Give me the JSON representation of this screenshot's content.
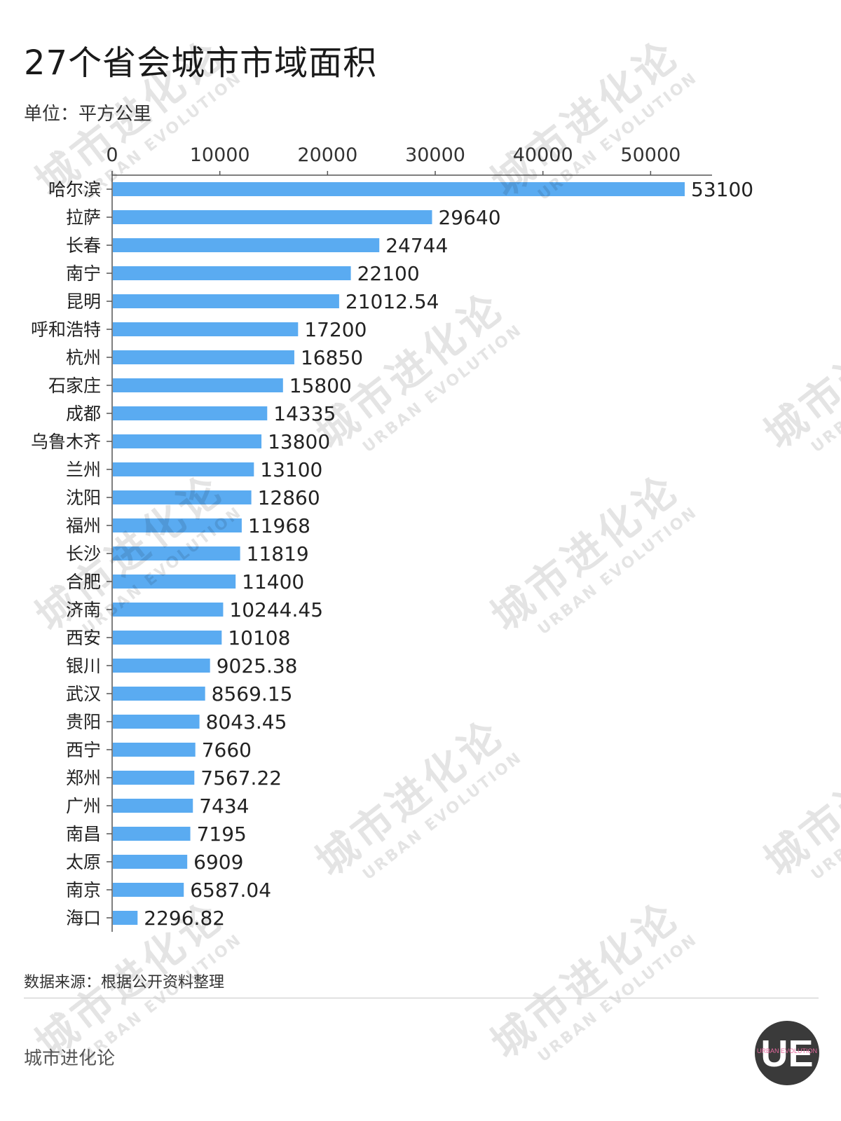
{
  "header": {
    "title": "27个省会城市市域面积",
    "unit": "单位：平方公里"
  },
  "chart_data": {
    "type": "bar",
    "orientation": "horizontal",
    "categories": [
      "哈尔滨",
      "拉萨",
      "长春",
      "南宁",
      "昆明",
      "呼和浩特",
      "杭州",
      "石家庄",
      "成都",
      "乌鲁木齐",
      "兰州",
      "沈阳",
      "福州",
      "长沙",
      "合肥",
      "济南",
      "西安",
      "银川",
      "武汉",
      "贵阳",
      "西宁",
      "郑州",
      "广州",
      "南昌",
      "太原",
      "南京",
      "海口"
    ],
    "values": [
      53100,
      29640,
      24744,
      22100,
      21012.54,
      17200,
      16850,
      15800,
      14335,
      13800,
      13100,
      12860,
      11968,
      11819,
      11400,
      10244.45,
      10108,
      9025.38,
      8569.15,
      8043.45,
      7660,
      7567.22,
      7434,
      7195,
      6909,
      6587.04,
      2296.82
    ],
    "value_labels": [
      "53100",
      "29640",
      "24744",
      "22100",
      "21012.54",
      "17200",
      "16850",
      "15800",
      "14335",
      "13800",
      "13100",
      "12860",
      "11968",
      "11819",
      "11400",
      "10244.45",
      "10108",
      "9025.38",
      "8569.15",
      "8043.45",
      "7660",
      "7567.22",
      "7434",
      "7195",
      "6909",
      "6587.04",
      "2296.82"
    ],
    "x_ticks": [
      0,
      10000,
      20000,
      30000,
      40000,
      50000
    ],
    "xlim": [
      0,
      55500
    ],
    "axis_position": "top",
    "bar_color": "#5aabf1",
    "grid": false,
    "legend": "none"
  },
  "footer": {
    "source": "数据来源：根据公开资料整理",
    "brand": "城市进化论"
  },
  "watermark": {
    "zh": "城市进化论",
    "en": "URBAN EVOLUTION"
  },
  "logo": {
    "letters": "UE",
    "ring_text": "URBAN EVOLUTION",
    "accent_color": "#e86aa0"
  }
}
